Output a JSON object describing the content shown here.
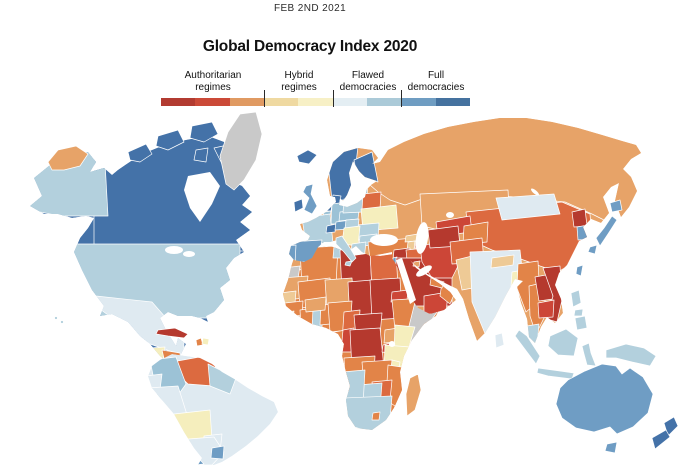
{
  "page": {
    "date": "FEB 2ND 2021",
    "title": "Global Democracy Index 2020"
  },
  "legend": {
    "items": [
      {
        "line1": "Authoritarian",
        "line2": "regimes"
      },
      {
        "line1": "Hybrid",
        "line2": "regimes"
      },
      {
        "line1": "Flawed",
        "line2": "democracies"
      },
      {
        "line1": "Full",
        "line2": "democracies"
      }
    ],
    "bar_colors": [
      "#b23b31",
      "#cb4a38",
      "#e09a62",
      "#efd9a1",
      "#f7f0c6",
      "#e4eef3",
      "#abcad8",
      "#6f9dc2",
      "#45729f"
    ],
    "tick_color": "#2a2a2a"
  },
  "map": {
    "ocean": "#ffffff",
    "colors": {
      "dark_red": "#b5392e",
      "red": "#cc4637",
      "red_orange": "#dc6a40",
      "orange": "#e28448",
      "tan": "#e7a368",
      "pale_tan": "#eeca96",
      "pale_yellow": "#f5eebd",
      "pale_blue": "#dfeaf1",
      "light_blue": "#b3d0dd",
      "mid_light_blue": "#9cc2d6",
      "mid_blue": "#6f9dc4",
      "dark_blue": "#4472a8",
      "gray": "#c9c9c9"
    },
    "regions": {
      "na_base": "dark_blue",
      "canada": "dark_blue",
      "arctic_islands": "dark_blue",
      "greenland": "gray",
      "alaska": "light_blue",
      "usa": "light_blue",
      "mexico": "pale_blue",
      "guatemala": "pale_yellow",
      "honduras_nicaragua": "orange",
      "costa_rica": "mid_blue",
      "panama": "light_blue",
      "cuba": "dark_red",
      "haiti": "orange",
      "dominican_republic": "pale_yellow",
      "hawaii": "light_blue",
      "sa_base": "pale_blue",
      "colombia": "mid_light_blue",
      "venezuela": "red_orange",
      "guyanas": "light_blue",
      "ecuador": "pale_blue",
      "peru": "pale_blue",
      "brazil": "pale_blue",
      "bolivia": "pale_yellow",
      "paraguay": "pale_blue",
      "chile": "mid_blue",
      "argentina": "pale_blue",
      "uruguay": "mid_blue",
      "iceland": "dark_blue",
      "ireland": "dark_blue",
      "uk": "mid_blue",
      "norway_sweden": "dark_blue",
      "finland": "dark_blue",
      "denmark": "dark_blue",
      "netherlands": "dark_blue",
      "belgium": "mid_light_blue",
      "germany": "mid_light_blue",
      "france": "light_blue",
      "switzerland": "dark_blue",
      "austria": "mid_blue",
      "czech_slovakia": "mid_light_blue",
      "poland": "light_blue",
      "baltics": "mid_light_blue",
      "belarus": "red_orange",
      "ukraine": "pale_yellow",
      "romania": "light_blue",
      "hungary": "light_blue",
      "balkans": "pale_yellow",
      "bulgaria": "light_blue",
      "greece": "light_blue",
      "italy": "light_blue",
      "sicily": "light_blue",
      "spain": "mid_blue",
      "portugal": "mid_blue",
      "eurasia_base": "tan",
      "russia": "tan",
      "chukotka": "tan",
      "turkey": "orange",
      "georgia": "pale_tan",
      "armenia": "pale_tan",
      "azerbaijan": "red",
      "syria": "dark_red",
      "israel": "mid_blue",
      "jordan": "orange",
      "iraq": "red_orange",
      "saudi_arabia": "dark_red",
      "yemen": "red",
      "oman": "orange",
      "uae": "orange",
      "kuwait": "tan",
      "iran": "red",
      "kazakhstan": "tan",
      "uzbekistan": "red",
      "turkmenistan": "dark_red",
      "kyrgyz_tajik": "orange",
      "afghanistan": "red_orange",
      "pakistan": "pale_tan",
      "india": "pale_blue",
      "nepal": "pale_tan",
      "bangladesh": "pale_yellow",
      "sri_lanka": "pale_blue",
      "myanmar": "orange",
      "thailand": "orange",
      "laos": "dark_red",
      "vietnam": "dark_red",
      "cambodia": "red",
      "malaysia": "light_blue",
      "china": "red_orange",
      "mongolia": "pale_blue",
      "north_korea": "dark_red",
      "south_korea": "mid_blue",
      "japan": "mid_blue",
      "taiwan": "mid_blue",
      "philippines": "light_blue",
      "indonesia": "light_blue",
      "new_guinea": "light_blue",
      "australia": "mid_blue",
      "tasmania": "mid_blue",
      "new_zealand": "dark_blue",
      "africa_base": "orange",
      "morocco": "tan",
      "western_sahara": "gray",
      "algeria": "orange",
      "tunisia": "light_blue",
      "libya": "dark_red",
      "egypt": "red_orange",
      "mauritania": "tan",
      "mali": "orange",
      "niger": "tan",
      "chad": "dark_red",
      "sudan": "dark_red",
      "eritrea": "red",
      "ethiopia": "orange",
      "somalia": "gray",
      "senegal": "pale_tan",
      "guinea": "orange",
      "sierra_leone": "pale_yellow",
      "liberia": "orange",
      "cote_divoire": "orange",
      "ghana": "light_blue",
      "togo_benin": "orange",
      "burkina_faso": "tan",
      "nigeria": "orange",
      "cameroon": "red_orange",
      "central_african_republic": "dark_red",
      "gabon": "orange",
      "congo": "red",
      "dr_congo": "dark_red",
      "uganda": "tan",
      "kenya": "pale_yellow",
      "rwanda_burundi": "red",
      "tanzania": "pale_yellow",
      "angola": "orange",
      "zambia": "orange",
      "malawi": "pale_yellow",
      "mozambique": "orange",
      "zimbabwe": "red_orange",
      "botswana": "light_blue",
      "namibia": "light_blue",
      "south_africa": "light_blue",
      "lesotho": "orange",
      "madagascar": "tan"
    }
  }
}
